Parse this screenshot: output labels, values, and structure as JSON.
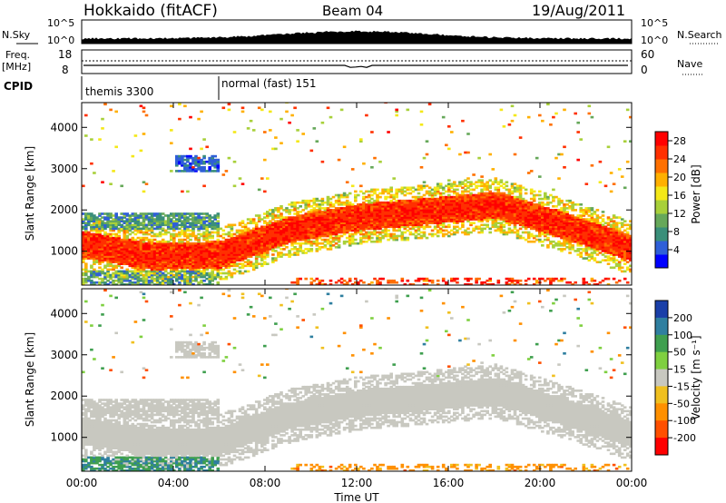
{
  "header": {
    "station": "Hokkaido (fitACF)",
    "beam": "Beam 04",
    "date": "19/Aug/2011"
  },
  "top_panels": {
    "nsky_label": "N.Sky",
    "nsearch_label": "N.Search",
    "noise_ticks": [
      "10^5",
      "10^0"
    ],
    "freq_label": "Freq.",
    "freq_unit": "[MHz]",
    "freq_ticks": [
      "18",
      "8"
    ],
    "nave_label": "Nave",
    "nave_ticks": [
      "60",
      "0"
    ],
    "cpid_label": "CPID",
    "cpid_modes": [
      "themis 3300",
      "normal (fast) 151"
    ]
  },
  "chart_data": [
    {
      "type": "heatmap",
      "quantity": "Power",
      "xlabel": "Time UT",
      "ylabel": "Slant Range [km]",
      "x_ticks": [
        "00:00",
        "04:00",
        "08:00",
        "12:00",
        "16:00",
        "20:00",
        "00:00"
      ],
      "xlim_hours": [
        0,
        24
      ],
      "y_ticks": [
        1000,
        2000,
        3000,
        4000
      ],
      "ylim_km": [
        180,
        4600
      ],
      "colorbar_label": "Power [dB]",
      "colorbar_ticks": [
        4,
        8,
        12,
        16,
        20,
        24,
        28
      ],
      "colorbar_range": [
        0,
        30
      ],
      "colorbar_colors": [
        "#0000ff",
        "#2f5fd8",
        "#3a8f7a",
        "#66a85a",
        "#a8d03a",
        "#f4e818",
        "#ffb000",
        "#ff7000",
        "#ff3000",
        "#ff0000"
      ],
      "features": [
        {
          "name": "main band",
          "time_h": [
            0,
            24
          ],
          "range_km_center": [
            1150,
            850,
            900,
            1500,
            1800,
            1950,
            2100,
            1600,
            1050
          ],
          "power_db": 28
        },
        {
          "name": "early upper band",
          "time_h": [
            0,
            6
          ],
          "range_km": [
            1500,
            1900
          ],
          "power_db": 8
        },
        {
          "name": "early patch",
          "time_h": [
            4,
            6
          ],
          "range_km": [
            2900,
            3300
          ],
          "power_db": 4
        }
      ]
    },
    {
      "type": "heatmap",
      "quantity": "Velocity",
      "xlabel": "Time UT",
      "ylabel": "Slant Range [km]",
      "x_ticks": [
        "00:00",
        "04:00",
        "08:00",
        "12:00",
        "16:00",
        "20:00",
        "00:00"
      ],
      "xlim_hours": [
        0,
        24
      ],
      "y_ticks": [
        1000,
        2000,
        3000,
        4000
      ],
      "ylim_km": [
        180,
        4600
      ],
      "colorbar_label": "Velocity [m s⁻¹]",
      "colorbar_ticks": [
        200,
        100,
        50,
        15,
        -15,
        -50,
        -100,
        -200
      ],
      "colorbar_colors": [
        "#1a3fa8",
        "#2f7fa0",
        "#3f9f4f",
        "#7fd040",
        "#c8c8c0",
        "#f0c020",
        "#ff9000",
        "#ff5000",
        "#ff0000"
      ],
      "features": [
        {
          "name": "ground scatter band",
          "time_h": [
            0,
            24
          ],
          "velocity_ms": 0
        },
        {
          "name": "near-range positive",
          "time_h": [
            0,
            6
          ],
          "range_km": [
            300,
            500
          ],
          "velocity_ms": 60
        }
      ]
    }
  ]
}
